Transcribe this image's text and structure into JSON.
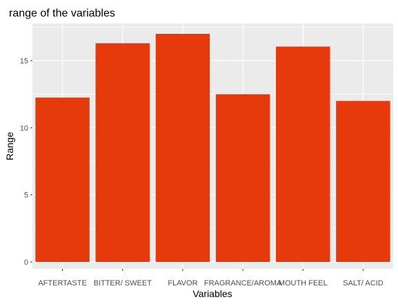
{
  "chart_data": {
    "type": "bar",
    "title": "range of the variables",
    "xlabel": "Variables",
    "ylabel": "Range",
    "categories": [
      "AFTERTASTE",
      "BITTER/ SWEET",
      "FLAVOR",
      "FRAGRANCE/AROMA",
      "MOUTH FEEL",
      "SALT/ ACID"
    ],
    "values": [
      12.25,
      16.3,
      17.0,
      12.5,
      16.05,
      12.0
    ],
    "ylim": [
      0,
      18
    ],
    "yticks": [
      0,
      5,
      10,
      15
    ],
    "grid": true,
    "bar_color": "#e63a0c",
    "panel_color": "#ebebeb",
    "grid_color": "#ffffff"
  }
}
